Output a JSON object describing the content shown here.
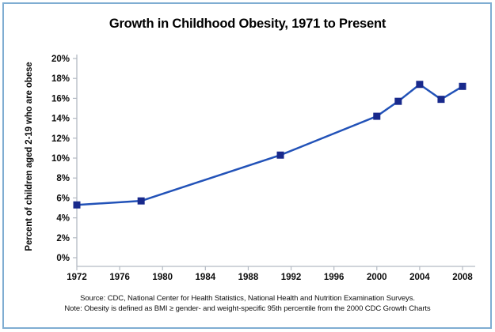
{
  "frame": {
    "border_color": "#7fadd2",
    "background": "#ffffff"
  },
  "header": {
    "title": "Growth in Childhood Obesity, 1971 to Present"
  },
  "chart_data": {
    "type": "line",
    "title": "Growth in Childhood Obesity, 1971 to Present",
    "xlabel": "",
    "ylabel": "Percent of children aged 2-19 who are obese",
    "x": [
      1972,
      1978,
      1991,
      2000,
      2002,
      2004,
      2006,
      2008
    ],
    "series": [
      {
        "name": "Percent of children aged 2-19 who are obese",
        "values": [
          5.3,
          5.7,
          10.3,
          14.2,
          15.7,
          17.4,
          15.9,
          17.2
        ]
      }
    ],
    "xlim": [
      1972,
      2008
    ],
    "ylim": [
      0,
      20
    ],
    "x_tick_labels": [
      "1972",
      "1976",
      "1980",
      "1984",
      "1988",
      "1992",
      "1996",
      "2000",
      "2004",
      "2008"
    ],
    "x_ticks": [
      1972,
      1976,
      1980,
      1984,
      1988,
      1992,
      1996,
      2000,
      2004,
      2008
    ],
    "y_tick_labels": [
      "0%",
      "2%",
      "4%",
      "6%",
      "8%",
      "10%",
      "12%",
      "14%",
      "16%",
      "18%",
      "20%"
    ],
    "y_ticks": [
      0,
      2,
      4,
      6,
      8,
      10,
      12,
      14,
      16,
      18,
      20
    ],
    "grid": false,
    "legend": false,
    "marker": "square",
    "line_color": "#2252b8",
    "marker_color": "#18298c",
    "axis_color": "#b3bac3",
    "tick_label_color": "#0d0d0d"
  },
  "footer": {
    "source": "Source: CDC, National Center for Health Statistics, National Health and Nutrition Examination Surveys.",
    "note": "Note: Obesity is defined as BMI ≥ gender- and weight-specific 95th percentile from the 2000 CDC Growth Charts"
  }
}
